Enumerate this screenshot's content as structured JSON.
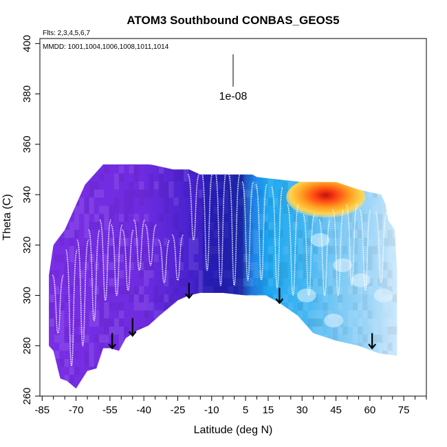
{
  "chart_data": {
    "type": "heatmap",
    "title": "ATOM3 Southbound CONBAS_GEOS5",
    "xlabel": "Latitude (deg N)",
    "ylabel": "Theta (C)",
    "flights_note": "Flts: 2,3,4,5,6,7",
    "dates_note": "MMDD: 1001,1004,1006,1008,1011,1014",
    "colorbar_label": "1e-08",
    "xlim": [
      -86,
      85
    ],
    "ylim": [
      260,
      402
    ],
    "x_ticks": [
      -85,
      -70,
      -55,
      -40,
      -25,
      -10,
      5,
      15,
      30,
      45,
      60,
      75
    ],
    "x_tick_labels": [
      "-85",
      "-70",
      "-55",
      "-40",
      "-25",
      "-10",
      "5",
      "15",
      "30",
      "45",
      "60",
      "75"
    ],
    "x_minor_ticks": [
      -80,
      -75,
      -65,
      -60,
      -50,
      -45,
      -35,
      -30,
      -20,
      -15,
      -5,
      0,
      10,
      20,
      25,
      35,
      40,
      50,
      55,
      65,
      70,
      80,
      85
    ],
    "y_ticks": [
      260,
      280,
      300,
      320,
      340,
      360,
      380,
      400
    ],
    "y_tick_labels": [
      "260",
      "280",
      "300",
      "320",
      "340",
      "360",
      "380",
      "400"
    ],
    "top_envelope": [
      {
        "lat": -82,
        "theta": 308
      },
      {
        "lat": -80,
        "theta": 320
      },
      {
        "lat": -75,
        "theta": 326
      },
      {
        "lat": -70,
        "theta": 336
      },
      {
        "lat": -66,
        "theta": 344
      },
      {
        "lat": -62,
        "theta": 348
      },
      {
        "lat": -58,
        "theta": 352
      },
      {
        "lat": -53,
        "theta": 352
      },
      {
        "lat": -45,
        "theta": 352
      },
      {
        "lat": -37,
        "theta": 352
      },
      {
        "lat": -27,
        "theta": 350
      },
      {
        "lat": -20,
        "theta": 350
      },
      {
        "lat": -15,
        "theta": 348
      },
      {
        "lat": 0,
        "theta": 348
      },
      {
        "lat": 8,
        "theta": 348
      },
      {
        "lat": 10,
        "theta": 347
      },
      {
        "lat": 20,
        "theta": 346
      },
      {
        "lat": 30,
        "theta": 345
      },
      {
        "lat": 45,
        "theta": 345
      },
      {
        "lat": 55,
        "theta": 342
      },
      {
        "lat": 65,
        "theta": 340
      },
      {
        "lat": 67,
        "theta": 336
      },
      {
        "lat": 68,
        "theta": 330
      },
      {
        "lat": 71,
        "theta": 326
      },
      {
        "lat": 72,
        "theta": 310
      }
    ],
    "bottom_envelope": [
      {
        "lat": 72,
        "theta": 276
      },
      {
        "lat": 64,
        "theta": 277
      },
      {
        "lat": 55,
        "theta": 280
      },
      {
        "lat": 45,
        "theta": 282
      },
      {
        "lat": 35,
        "theta": 285
      },
      {
        "lat": 28,
        "theta": 292
      },
      {
        "lat": 20,
        "theta": 297
      },
      {
        "lat": 14,
        "theta": 300
      },
      {
        "lat": 5,
        "theta": 300
      },
      {
        "lat": -5,
        "theta": 301
      },
      {
        "lat": -15,
        "theta": 301
      },
      {
        "lat": -20,
        "theta": 300
      },
      {
        "lat": -25,
        "theta": 298
      },
      {
        "lat": -33,
        "theta": 292
      },
      {
        "lat": -38,
        "theta": 288
      },
      {
        "lat": -43,
        "theta": 286
      },
      {
        "lat": -48,
        "theta": 283
      },
      {
        "lat": -51,
        "theta": 278
      },
      {
        "lat": -55,
        "theta": 279
      },
      {
        "lat": -58,
        "theta": 279
      },
      {
        "lat": -61,
        "theta": 271
      },
      {
        "lat": -65,
        "theta": 270
      },
      {
        "lat": -70,
        "theta": 263
      },
      {
        "lat": -74,
        "theta": 266
      },
      {
        "lat": -77,
        "theta": 267
      },
      {
        "lat": -80,
        "theta": 278
      },
      {
        "lat": -82,
        "theta": 280
      }
    ],
    "field_color_stops": [
      {
        "lat": -82,
        "color": "#7a2ee6"
      },
      {
        "lat": -40,
        "color": "#6e2be0"
      },
      {
        "lat": -20,
        "color": "#4a22d0"
      },
      {
        "lat": -5,
        "color": "#2f1fb8"
      },
      {
        "lat": 3,
        "color": "#1c3aa8"
      },
      {
        "lat": 8,
        "color": "#1e7fe6"
      },
      {
        "lat": 15,
        "color": "#1ea7f0"
      },
      {
        "lat": 30,
        "color": "#3fb5f2"
      },
      {
        "lat": 45,
        "color": "#78c8f5"
      },
      {
        "lat": 60,
        "color": "#9fd6f8"
      },
      {
        "lat": 72,
        "color": "#cde8fb"
      }
    ],
    "high_values_region": {
      "lat_range": [
        23,
        58
      ],
      "theta_range": [
        332,
        346
      ],
      "colors": [
        "#fff3a0",
        "#ffd24a",
        "#ff9a1e",
        "#ff4a14",
        "#c80f0f"
      ]
    },
    "flight_track_profiles": [
      {
        "lat": -78,
        "top": 308,
        "bottom": 285
      },
      {
        "lat": -72,
        "top": 318,
        "bottom": 272
      },
      {
        "lat": -67,
        "top": 322,
        "bottom": 280
      },
      {
        "lat": -62,
        "top": 326,
        "bottom": 290
      },
      {
        "lat": -57,
        "top": 330,
        "bottom": 298
      },
      {
        "lat": -52,
        "top": 328,
        "bottom": 300
      },
      {
        "lat": -47,
        "top": 326,
        "bottom": 302
      },
      {
        "lat": -42,
        "top": 330,
        "bottom": 310
      },
      {
        "lat": -37,
        "top": 328,
        "bottom": 312
      },
      {
        "lat": -31,
        "top": 322,
        "bottom": 305
      },
      {
        "lat": -25,
        "top": 324,
        "bottom": 306
      },
      {
        "lat": -18,
        "top": 348,
        "bottom": 322
      },
      {
        "lat": -12,
        "top": 349,
        "bottom": 310
      },
      {
        "lat": -6,
        "top": 349,
        "bottom": 304
      },
      {
        "lat": 0,
        "top": 348,
        "bottom": 304
      },
      {
        "lat": 6,
        "top": 345,
        "bottom": 306
      },
      {
        "lat": 12,
        "top": 344,
        "bottom": 306
      },
      {
        "lat": 19,
        "top": 343,
        "bottom": 303
      },
      {
        "lat": 26,
        "top": 336,
        "bottom": 300
      },
      {
        "lat": 33,
        "top": 332,
        "bottom": 300
      },
      {
        "lat": 40,
        "top": 330,
        "bottom": 300
      },
      {
        "lat": 46,
        "top": 334,
        "bottom": 300
      },
      {
        "lat": 52,
        "top": 336,
        "bottom": 304
      },
      {
        "lat": 58,
        "top": 334,
        "bottom": 302
      },
      {
        "lat": 65,
        "top": 333,
        "bottom": 305
      }
    ],
    "arrows": [
      {
        "lat": -54,
        "theta_top": 285,
        "theta_bottom": 279
      },
      {
        "lat": -45,
        "theta_top": 291,
        "theta_bottom": 284
      },
      {
        "lat": -20,
        "theta_top": 305,
        "theta_bottom": 299
      },
      {
        "lat": 20,
        "theta_top": 303,
        "theta_bottom": 297
      },
      {
        "lat": 61,
        "theta_top": 285,
        "theta_bottom": 279
      }
    ]
  }
}
